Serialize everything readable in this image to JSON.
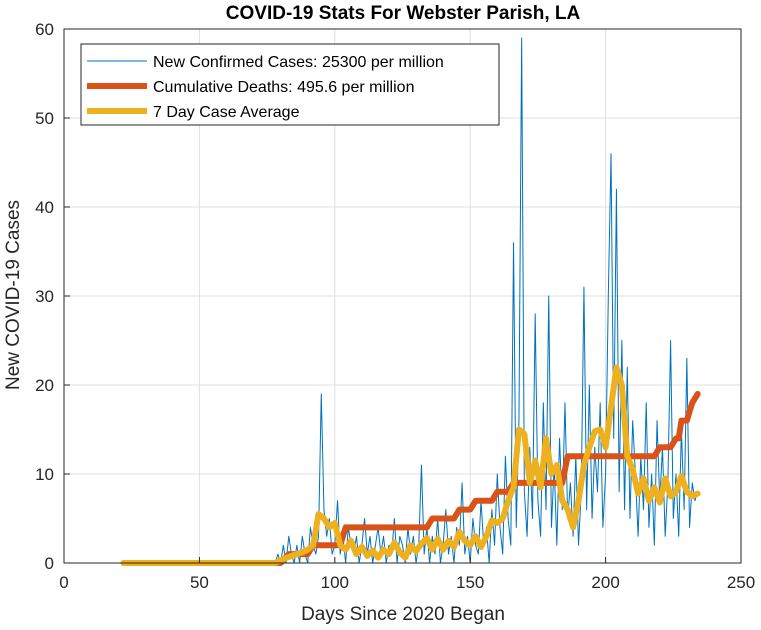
{
  "chart_data": {
    "type": "line",
    "title": "COVID-19 Stats For Webster Parish, LA",
    "xlabel": "Days Since 2020 Began",
    "ylabel": "New COVID-19 Cases",
    "xlim": [
      0,
      250
    ],
    "ylim": [
      0,
      60
    ],
    "xticks": [
      0,
      50,
      100,
      150,
      200,
      250
    ],
    "yticks": [
      0,
      10,
      20,
      30,
      40,
      50,
      60
    ],
    "grid": true,
    "legend_position": "top-left",
    "series": [
      {
        "name": "New Confirmed Cases: 25300 per million",
        "color": "#0072BD",
        "style": "thin",
        "points": [
          [
            22,
            0
          ],
          [
            30,
            0
          ],
          [
            40,
            0
          ],
          [
            50,
            0
          ],
          [
            60,
            0
          ],
          [
            70,
            0
          ],
          [
            78,
            0
          ],
          [
            79,
            1
          ],
          [
            80,
            0
          ],
          [
            81,
            2
          ],
          [
            82,
            0
          ],
          [
            83,
            3
          ],
          [
            84,
            1
          ],
          [
            85,
            0
          ],
          [
            86,
            2
          ],
          [
            87,
            0
          ],
          [
            88,
            3
          ],
          [
            89,
            1
          ],
          [
            90,
            0
          ],
          [
            91,
            4
          ],
          [
            92,
            2
          ],
          [
            93,
            1
          ],
          [
            94,
            3
          ],
          [
            95,
            19
          ],
          [
            96,
            6
          ],
          [
            97,
            3
          ],
          [
            98,
            5
          ],
          [
            99,
            1
          ],
          [
            100,
            2
          ],
          [
            101,
            7
          ],
          [
            102,
            1
          ],
          [
            103,
            3
          ],
          [
            104,
            0
          ],
          [
            105,
            4
          ],
          [
            106,
            2
          ],
          [
            107,
            1
          ],
          [
            108,
            3
          ],
          [
            109,
            0
          ],
          [
            110,
            2
          ],
          [
            111,
            5
          ],
          [
            112,
            1
          ],
          [
            113,
            3
          ],
          [
            114,
            0
          ],
          [
            115,
            2
          ],
          [
            116,
            4
          ],
          [
            117,
            1
          ],
          [
            118,
            3
          ],
          [
            119,
            0
          ],
          [
            120,
            2
          ],
          [
            121,
            1
          ],
          [
            122,
            5
          ],
          [
            123,
            0
          ],
          [
            124,
            3
          ],
          [
            125,
            2
          ],
          [
            126,
            0
          ],
          [
            127,
            4
          ],
          [
            128,
            1
          ],
          [
            129,
            3
          ],
          [
            130,
            0
          ],
          [
            131,
            2
          ],
          [
            132,
            11
          ],
          [
            133,
            1
          ],
          [
            134,
            4
          ],
          [
            135,
            0
          ],
          [
            136,
            3
          ],
          [
            137,
            1
          ],
          [
            138,
            5
          ],
          [
            139,
            0
          ],
          [
            140,
            2
          ],
          [
            141,
            6
          ],
          [
            142,
            1
          ],
          [
            143,
            3
          ],
          [
            144,
            0
          ],
          [
            145,
            4
          ],
          [
            146,
            2
          ],
          [
            147,
            9
          ],
          [
            148,
            1
          ],
          [
            149,
            3
          ],
          [
            150,
            0
          ],
          [
            151,
            5
          ],
          [
            152,
            2
          ],
          [
            153,
            1
          ],
          [
            154,
            7
          ],
          [
            155,
            2
          ],
          [
            156,
            4
          ],
          [
            157,
            0
          ],
          [
            158,
            6
          ],
          [
            159,
            2
          ],
          [
            160,
            10
          ],
          [
            161,
            4
          ],
          [
            162,
            1
          ],
          [
            163,
            12
          ],
          [
            164,
            5
          ],
          [
            165,
            2
          ],
          [
            166,
            36
          ],
          [
            167,
            4
          ],
          [
            168,
            16
          ],
          [
            169,
            59
          ],
          [
            170,
            8
          ],
          [
            171,
            3
          ],
          [
            172,
            13
          ],
          [
            173,
            5
          ],
          [
            174,
            28
          ],
          [
            175,
            7
          ],
          [
            176,
            3
          ],
          [
            177,
            18
          ],
          [
            178,
            6
          ],
          [
            179,
            30
          ],
          [
            180,
            4
          ],
          [
            181,
            11
          ],
          [
            182,
            2
          ],
          [
            183,
            14
          ],
          [
            184,
            6
          ],
          [
            185,
            18
          ],
          [
            186,
            5
          ],
          [
            187,
            9
          ],
          [
            188,
            3
          ],
          [
            189,
            12
          ],
          [
            190,
            2
          ],
          [
            191,
            8
          ],
          [
            192,
            31
          ],
          [
            193,
            6
          ],
          [
            194,
            20
          ],
          [
            195,
            5
          ],
          [
            196,
            13
          ],
          [
            197,
            8
          ],
          [
            198,
            18
          ],
          [
            199,
            4
          ],
          [
            200,
            10
          ],
          [
            201,
            30
          ],
          [
            202,
            46
          ],
          [
            203,
            14
          ],
          [
            204,
            42
          ],
          [
            205,
            8
          ],
          [
            206,
            25
          ],
          [
            207,
            6
          ],
          [
            208,
            22
          ],
          [
            209,
            5
          ],
          [
            210,
            16
          ],
          [
            211,
            10
          ],
          [
            212,
            3
          ],
          [
            213,
            12
          ],
          [
            214,
            6
          ],
          [
            215,
            18
          ],
          [
            216,
            4
          ],
          [
            217,
            10
          ],
          [
            218,
            2
          ],
          [
            219,
            16
          ],
          [
            220,
            7
          ],
          [
            221,
            13
          ],
          [
            222,
            3
          ],
          [
            223,
            9
          ],
          [
            224,
            25
          ],
          [
            225,
            5
          ],
          [
            226,
            10
          ],
          [
            227,
            3
          ],
          [
            228,
            15
          ],
          [
            229,
            6
          ],
          [
            230,
            23
          ],
          [
            231,
            4
          ],
          [
            232,
            9
          ],
          [
            233,
            7
          ],
          [
            234,
            8
          ]
        ]
      },
      {
        "name": "Cumulative Deaths: 495.6 per million",
        "color": "#D95319",
        "style": "thick",
        "points": [
          [
            22,
            0
          ],
          [
            80,
            0
          ],
          [
            83,
            1
          ],
          [
            90,
            1
          ],
          [
            92,
            2
          ],
          [
            102,
            2
          ],
          [
            104,
            4
          ],
          [
            134,
            4
          ],
          [
            136,
            5
          ],
          [
            144,
            5
          ],
          [
            146,
            6
          ],
          [
            150,
            6
          ],
          [
            152,
            7
          ],
          [
            158,
            7
          ],
          [
            160,
            8
          ],
          [
            164,
            8
          ],
          [
            166,
            9
          ],
          [
            184,
            9
          ],
          [
            186,
            12
          ],
          [
            218,
            12
          ],
          [
            220,
            13
          ],
          [
            224,
            13
          ],
          [
            226,
            14
          ],
          [
            227,
            14
          ],
          [
            228,
            16
          ],
          [
            230,
            16
          ],
          [
            232,
            18
          ],
          [
            234,
            19
          ]
        ]
      },
      {
        "name": "7 Day Case Average",
        "color": "#EDB120",
        "style": "thick",
        "points": [
          [
            22,
            0
          ],
          [
            30,
            0
          ],
          [
            40,
            0
          ],
          [
            50,
            0
          ],
          [
            60,
            0
          ],
          [
            70,
            0
          ],
          [
            78,
            0
          ],
          [
            80,
            0.3
          ],
          [
            84,
            0.8
          ],
          [
            88,
            1.2
          ],
          [
            90,
            1.5
          ],
          [
            92,
            2
          ],
          [
            94,
            5.5
          ],
          [
            96,
            5
          ],
          [
            98,
            4
          ],
          [
            100,
            4.5
          ],
          [
            102,
            2
          ],
          [
            104,
            1.5
          ],
          [
            106,
            2.5
          ],
          [
            108,
            1
          ],
          [
            110,
            1.8
          ],
          [
            112,
            0.8
          ],
          [
            114,
            1.4
          ],
          [
            116,
            0.6
          ],
          [
            118,
            1.5
          ],
          [
            120,
            1
          ],
          [
            122,
            2.3
          ],
          [
            124,
            1.2
          ],
          [
            126,
            0.6
          ],
          [
            128,
            2
          ],
          [
            130,
            1.3
          ],
          [
            132,
            2.2
          ],
          [
            134,
            2.8
          ],
          [
            136,
            1.5
          ],
          [
            138,
            2.7
          ],
          [
            140,
            1.5
          ],
          [
            142,
            2.5
          ],
          [
            144,
            1.8
          ],
          [
            146,
            3.5
          ],
          [
            148,
            2.5
          ],
          [
            150,
            2
          ],
          [
            152,
            3
          ],
          [
            154,
            1.8
          ],
          [
            156,
            3
          ],
          [
            158,
            4.8
          ],
          [
            160,
            4.5
          ],
          [
            162,
            5
          ],
          [
            164,
            7
          ],
          [
            166,
            8.5
          ],
          [
            168,
            15
          ],
          [
            170,
            14.5
          ],
          [
            172,
            9
          ],
          [
            174,
            11.5
          ],
          [
            176,
            8.5
          ],
          [
            178,
            14
          ],
          [
            180,
            10
          ],
          [
            182,
            11
          ],
          [
            184,
            7
          ],
          [
            186,
            6
          ],
          [
            188,
            4
          ],
          [
            190,
            7
          ],
          [
            192,
            11
          ],
          [
            194,
            13
          ],
          [
            196,
            14.8
          ],
          [
            198,
            15
          ],
          [
            200,
            13
          ],
          [
            202,
            17.5
          ],
          [
            204,
            22
          ],
          [
            206,
            20
          ],
          [
            208,
            12
          ],
          [
            210,
            10.5
          ],
          [
            212,
            7.8
          ],
          [
            214,
            9.5
          ],
          [
            216,
            7
          ],
          [
            218,
            8.5
          ],
          [
            220,
            6.8
          ],
          [
            222,
            9.5
          ],
          [
            224,
            7.5
          ],
          [
            226,
            8
          ],
          [
            228,
            9.8
          ],
          [
            230,
            8
          ],
          [
            232,
            7.5
          ],
          [
            234,
            7.8
          ]
        ]
      }
    ]
  }
}
